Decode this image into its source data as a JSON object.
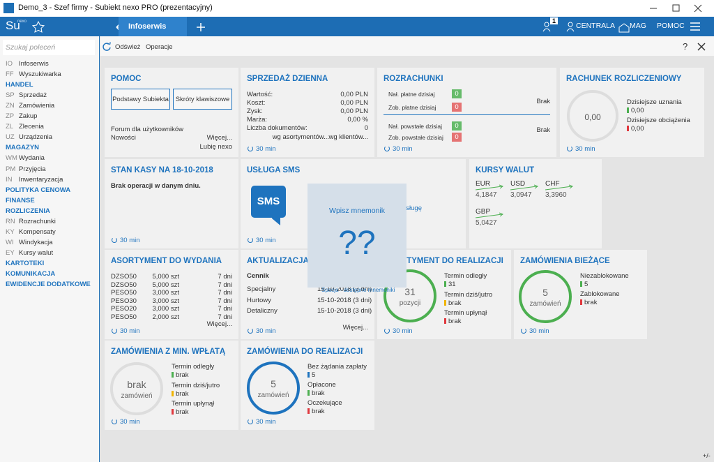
{
  "window": {
    "title": "Demo_3 - Szef firmy - Subiekt nexo PRO (prezentacyjny)"
  },
  "logo": {
    "text": "Su",
    "sub": "nexo"
  },
  "topbar": {
    "tab": "Infoserwis",
    "badge": "1",
    "centrala": "CENTRALA",
    "mag": "MAG",
    "pomoc": "POMOC"
  },
  "sidebar": {
    "search": "Szukaj poleceń",
    "items": [
      {
        "code": "IO",
        "label": "Infoserwis"
      },
      {
        "code": "FF",
        "label": "Wyszukiwarka"
      },
      {
        "section": "HANDEL"
      },
      {
        "code": "SP",
        "label": "Sprzedaż"
      },
      {
        "code": "ZN",
        "label": "Zamówienia"
      },
      {
        "code": "ZP",
        "label": "Zakup"
      },
      {
        "code": "ZL",
        "label": "Zlecenia"
      },
      {
        "code": "UZ",
        "label": "Urządzenia"
      },
      {
        "section": "MAGAZYN"
      },
      {
        "code": "WM",
        "label": "Wydania"
      },
      {
        "code": "PM",
        "label": "Przyjęcia"
      },
      {
        "code": "IN",
        "label": "Inwentaryzacja"
      },
      {
        "section": "POLITYKA CENOWA"
      },
      {
        "section": "FINANSE"
      },
      {
        "section": "ROZLICZENIA"
      },
      {
        "code": "RN",
        "label": "Rozrachunki"
      },
      {
        "code": "KY",
        "label": "Kompensaty"
      },
      {
        "code": "WI",
        "label": "Windykacja"
      },
      {
        "code": "EY",
        "label": "Kursy walut"
      },
      {
        "section": "KARTOTEKI"
      },
      {
        "section": "KOMUNIKACJA"
      },
      {
        "section": "EWIDENCJE DODATKOWE"
      }
    ]
  },
  "toolbar": {
    "refresh": "Odśwież",
    "operations": "Operacje",
    "help": "?"
  },
  "tiles": {
    "pomoc": {
      "title": "POMOC",
      "buttons": [
        "Podstawy Subiekta",
        "Skróty klawiszowe"
      ],
      "forum": "Forum dla użytkowników",
      "news": "Nowości",
      "more": "Więcej...",
      "like": "Lubię nexo"
    },
    "sprzedaz": {
      "title": "SPRZEDAŻ DZIENNA",
      "rows": [
        [
          "Wartość:",
          "0,00 PLN"
        ],
        [
          "Koszt:",
          "0,00 PLN"
        ],
        [
          "Zysk:",
          "0,00 PLN"
        ],
        [
          "Marża:",
          "0,00 %"
        ],
        [
          "Liczba dokumentów:",
          "0"
        ]
      ],
      "links": [
        "wg asortymentów...",
        "wg klientów..."
      ],
      "refresh": "30 min"
    },
    "rozrachunki": {
      "title": "ROZRACHUNKI",
      "rows": [
        [
          "Nał. płatne dzisiaj",
          "0"
        ],
        [
          "Zob. płatne dzisiaj",
          "0"
        ],
        [
          "Nał. powstałe dzisiaj",
          "0"
        ],
        [
          "Zob. powstałe dzisiaj",
          "0"
        ]
      ],
      "status": [
        "Brak",
        "Brak"
      ],
      "refresh": "30 min"
    },
    "rachunek": {
      "title": "RACHUNEK ROZLICZENIOWY",
      "balance": "0,00",
      "items": [
        [
          "Dzisiejsze uznania",
          "0,00"
        ],
        [
          "Dzisiejsze obciążenia",
          "0,00"
        ]
      ],
      "refresh": "30 min"
    },
    "kasa": {
      "title": "STAN KASY NA 18-10-2018",
      "message": "Brak operacji w danym dniu.",
      "refresh": "30 min"
    },
    "sms": {
      "title": "USŁUGA SMS",
      "icon": "SMS",
      "link": "usługę",
      "refresh": "30 min"
    },
    "kursy": {
      "title": "KURSY WALUT",
      "rates": [
        [
          "EUR",
          "4,1847"
        ],
        [
          "USD",
          "3,0947"
        ],
        [
          "CHF",
          "3,3960"
        ],
        [
          "GBP",
          "5,0427"
        ]
      ]
    },
    "asort_wyd": {
      "title": "ASORTYMENT DO WYDANIA",
      "rows": [
        [
          "DZSO50",
          "5,000 szt",
          "7 dni"
        ],
        [
          "DZSO50",
          "5,000 szt",
          "7 dni"
        ],
        [
          "PESO50",
          "3,000 szt",
          "7 dni"
        ],
        [
          "PESO30",
          "3,000 szt",
          "7 dni"
        ],
        [
          "PESO20",
          "3,000 szt",
          "7 dni"
        ],
        [
          "PESO50",
          "2,000 szt",
          "7 dni"
        ]
      ],
      "more": "Więcej...",
      "refresh": "30 min"
    },
    "aktualizacja": {
      "title": "AKTUALIZACJA CEN",
      "subtitle": "Cennik",
      "rows": [
        [
          "Specjalny",
          "15-10-2018 (3 dni)"
        ],
        [
          "Hurtowy",
          "15-10-2018 (3 dni)"
        ],
        [
          "Detaliczny",
          "15-10-2018 (3 dni)"
        ]
      ],
      "more": "Więcej...",
      "refresh": "30 min"
    },
    "asort_real": {
      "title": "ASORTYMENT DO REALIZACJI",
      "count": "31",
      "unit": "pozycji",
      "items": [
        [
          "Termin odległy",
          "31"
        ],
        [
          "Termin dziś/jutro",
          "brak"
        ],
        [
          "Termin upłynął",
          "brak"
        ]
      ],
      "refresh": "30 min"
    },
    "zam_biez": {
      "title": "ZAMÓWIENIA BIEŻĄCE",
      "count": "5",
      "unit": "zamówień",
      "items": [
        [
          "Niezablokowane",
          "5"
        ],
        [
          "Zablokowane",
          "brak"
        ]
      ],
      "refresh": "30 min"
    },
    "zam_min": {
      "title": "ZAMÓWIENIA Z MIN. WPŁATĄ",
      "count": "brak",
      "unit": "zamówień",
      "items": [
        [
          "Termin odległy",
          "brak"
        ],
        [
          "Termin dziś/jutro",
          "brak"
        ],
        [
          "Termin upłynął",
          "brak"
        ]
      ],
      "refresh": "30 min"
    },
    "zam_real": {
      "title": "ZAMÓWIENIA DO REALIZACJI",
      "count": "5",
      "unit": "zamówień",
      "items": [
        [
          "Bez żądania zapłaty",
          "5"
        ],
        [
          "Opłacone",
          "brak"
        ],
        [
          "Oczekujące",
          "brak"
        ]
      ],
      "refresh": "30 min"
    }
  },
  "mnemonic": {
    "prompt": "Wpisz mnemonik",
    "input": "??",
    "hint": "Spacja - dostępne mnemoniki"
  },
  "status": {
    "zoom": "+/-"
  }
}
